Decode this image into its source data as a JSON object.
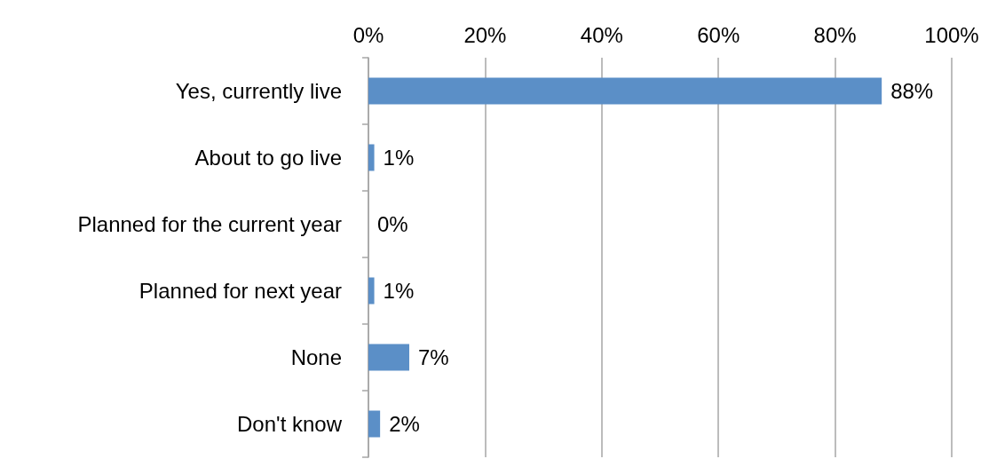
{
  "chart_data": {
    "type": "bar",
    "orientation": "horizontal",
    "categories": [
      "Yes, currently live",
      "About to go live",
      "Planned for the current year",
      "Planned for next year",
      "None",
      "Don't know"
    ],
    "values": [
      88,
      1,
      0,
      1,
      7,
      2
    ],
    "value_labels": [
      "88%",
      "1%",
      "0%",
      "1%",
      "7%",
      "2%"
    ],
    "color": "#5b8fc7",
    "xlim": [
      0,
      100
    ],
    "xticks": [
      {
        "value": 0,
        "label": "0%"
      },
      {
        "value": 20,
        "label": "20%"
      },
      {
        "value": 40,
        "label": "40%"
      },
      {
        "value": 60,
        "label": "60%"
      },
      {
        "value": 80,
        "label": "80%"
      },
      {
        "value": 100,
        "label": "100%"
      }
    ],
    "grid": "x"
  }
}
